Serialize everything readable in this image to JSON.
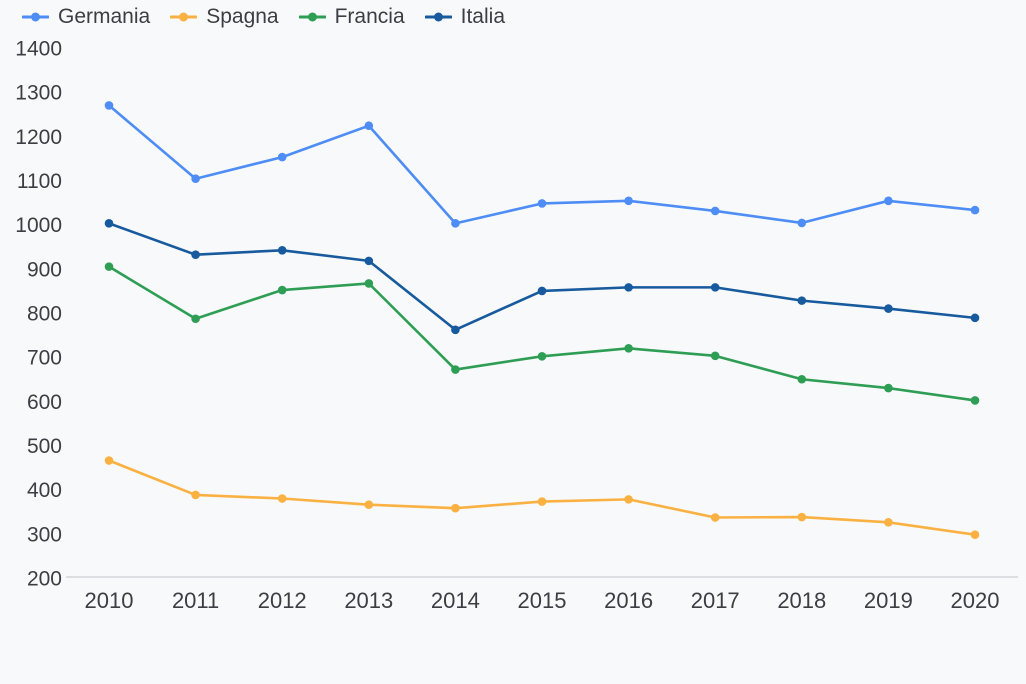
{
  "page": {
    "background_color": "#f8f9fa",
    "text_color": "#3b3f44",
    "axis_line_color": "#dcdee1"
  },
  "chart_data": {
    "type": "line",
    "title": "",
    "xlabel": "",
    "ylabel": "",
    "categories": [
      "2010",
      "2011",
      "2012",
      "2013",
      "2014",
      "2015",
      "2016",
      "2017",
      "2018",
      "2019",
      "2020"
    ],
    "series": [
      {
        "name": "Germania",
        "color": "#4e8df5",
        "values": [
          1270,
          1104,
          1153,
          1224,
          1003,
          1048,
          1054,
          1031,
          1004,
          1054,
          1033
        ]
      },
      {
        "name": "Spagna",
        "color": "#fab142",
        "values": [
          466,
          388,
          380,
          366,
          358,
          373,
          378,
          337,
          338,
          326,
          298
        ]
      },
      {
        "name": "Francia",
        "color": "#2f9e55",
        "values": [
          905,
          787,
          852,
          867,
          672,
          702,
          720,
          703,
          650,
          630,
          602
        ]
      },
      {
        "name": "Italia",
        "color": "#175a9d",
        "values": [
          1003,
          932,
          942,
          918,
          762,
          850,
          858,
          858,
          828,
          810,
          789
        ]
      }
    ],
    "ylim": [
      200,
      1400
    ],
    "y_ticks": [
      200,
      300,
      400,
      500,
      600,
      700,
      800,
      900,
      1000,
      1100,
      1200,
      1300,
      1400
    ],
    "grid": false,
    "legend_position": "top-left",
    "marker_style": "line-dot",
    "point_radius": 4.3,
    "line_width": 2.6
  }
}
